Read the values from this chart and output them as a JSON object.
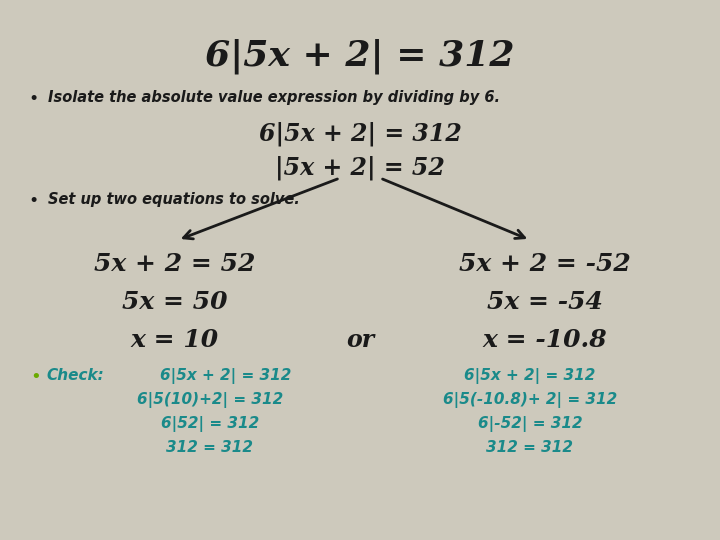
{
  "bg_color": "#cdc9bc",
  "title": "6|5x + 2| = 312",
  "title_fontsize": 26,
  "bullet1_text": "Isolate the absolute value expression by dividing by 6.",
  "bullet1_fontsize": 10.5,
  "eq1": "6|5x + 2| = 312",
  "eq2": "|5x + 2| = 52",
  "bullet2_text": "Set up two equations to solve.",
  "bullet2_fontsize": 10.5,
  "left_eq1": "5x + 2 = 52",
  "left_eq2": "5x = 50",
  "left_eq3": "x = 10",
  "right_eq1": "5x + 2 = -52",
  "right_eq2": "5x = -54",
  "right_eq3": "x = -10.8",
  "or_text": "or",
  "check_label": "Check:",
  "check_left0": "6|5x + 2| = 312",
  "check_left1": "6|5(10)+2| = 312",
  "check_left2": "6|52| = 312",
  "check_left3": "312 = 312",
  "check_right0": "6|5x + 2| = 312",
  "check_right1": "6|5(-10.8)+ 2| = 312",
  "check_right2": "6|-52| = 312",
  "check_right3": "312 = 312",
  "teal_color": "#1a8a8a",
  "black_color": "#1a1a1a",
  "green_bullet_color": "#6aaa00",
  "title_fontsize_n": 26,
  "main_eq_fontsize": 17,
  "branch_eq_fontsize": 18,
  "check_fontsize": 11
}
